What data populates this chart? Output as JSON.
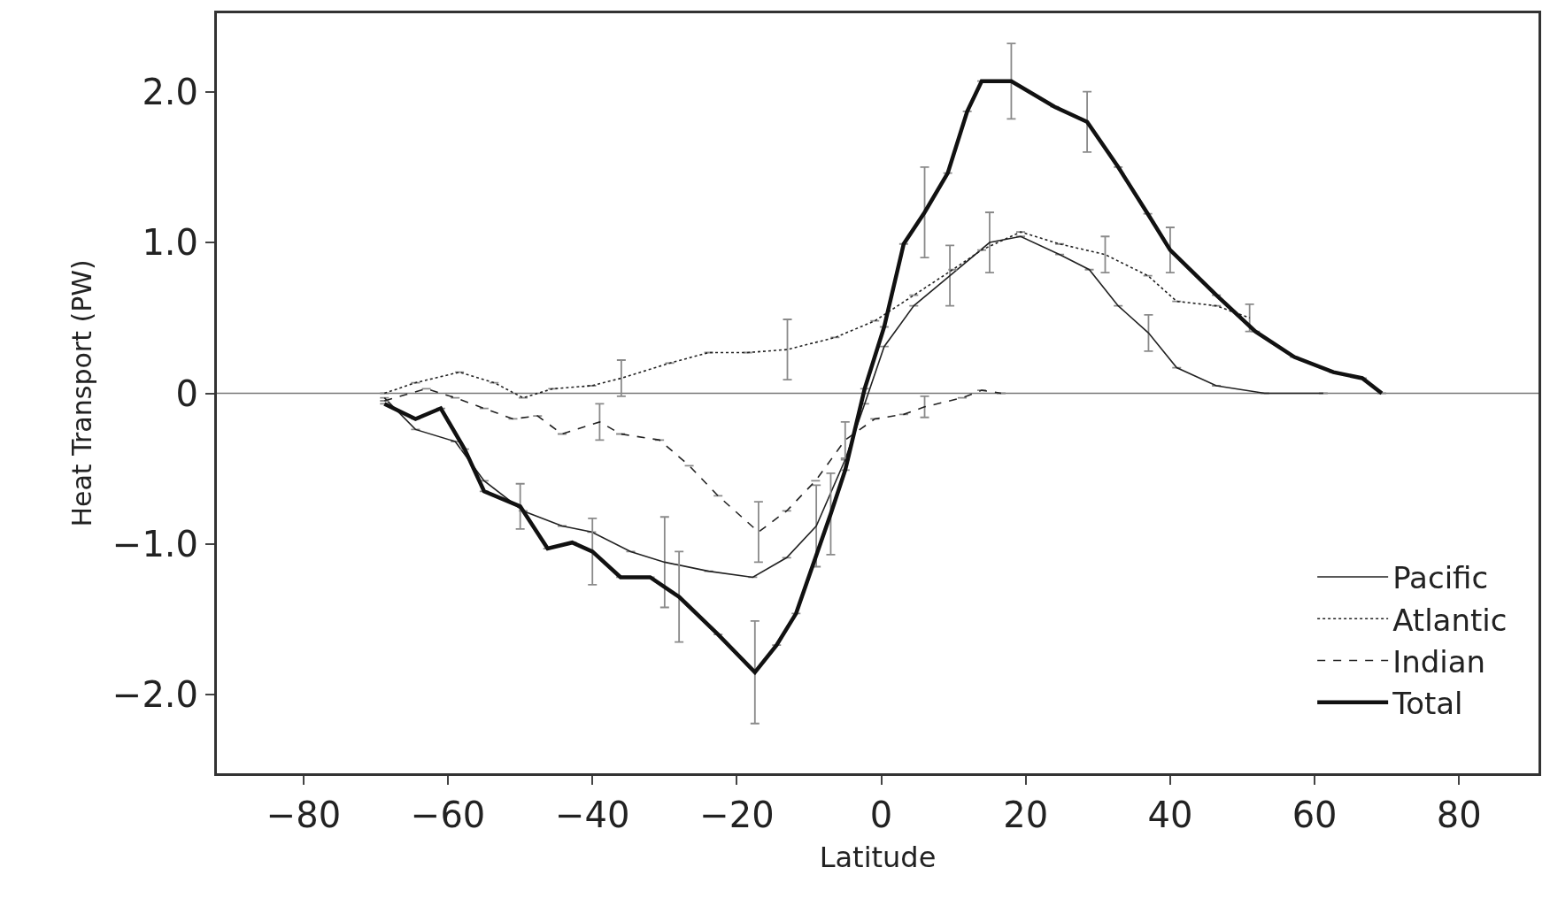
{
  "chart_data": {
    "type": "line",
    "xlabel": "Latitude",
    "ylabel": "Heat Transport (PW)",
    "xlim": [
      -92,
      91
    ],
    "ylim": [
      -2.52,
      2.52
    ],
    "xticks": [
      {
        "value": -80,
        "label": "−80"
      },
      {
        "value": -60,
        "label": "−60"
      },
      {
        "value": -40,
        "label": "−40"
      },
      {
        "value": -20,
        "label": "−20"
      },
      0,
      20,
      40,
      60,
      80
    ],
    "yticks": [
      {
        "value": -2,
        "label": "−2.0"
      },
      {
        "value": -1,
        "label": "−1.0"
      },
      0,
      {
        "value": 1,
        "label": "1.0"
      },
      {
        "value": 2,
        "label": "2.0"
      }
    ],
    "grid": false,
    "legend": "bottom right",
    "marker": "none",
    "ref_lines": [
      {
        "axis": "y",
        "value": 0,
        "color": "#777777"
      }
    ],
    "series": [
      {
        "name": "Pacific",
        "color": "#222222",
        "line_style": "solid",
        "x": [
          -68.8,
          -64.5,
          -59,
          -55,
          -49.6,
          -44.2,
          -40.1,
          -34.7,
          -30,
          -23.9,
          -17.8,
          -13.1,
          -9,
          -5,
          -2.3,
          0.4,
          4.5,
          9.5,
          15,
          19.3,
          24.7,
          28.8,
          32.8,
          37,
          40.9,
          46.4,
          53.1,
          61.2
        ],
        "values": [
          -0.03,
          -0.24,
          -0.32,
          -0.58,
          -0.78,
          -0.88,
          -0.92,
          -1.05,
          -1.12,
          -1.18,
          -1.22,
          -1.09,
          -0.88,
          -0.44,
          -0.07,
          0.31,
          0.58,
          0.78,
          1.0,
          1.04,
          0.92,
          0.82,
          0.58,
          0.4,
          0.17,
          0.05,
          0,
          0
        ],
        "errors": [
          null,
          null,
          null,
          null,
          null,
          null,
          null,
          null,
          0.3,
          null,
          null,
          null,
          0.27,
          null,
          null,
          null,
          null,
          0.2,
          0.2,
          null,
          null,
          null,
          null,
          0.12,
          null,
          null,
          null,
          null
        ]
      },
      {
        "name": "Atlantic",
        "color": "#222222",
        "line_style": "dotted",
        "x": [
          -68.8,
          -64.5,
          -58.4,
          -53.6,
          -49.6,
          -45.5,
          -40.1,
          -36,
          -29.3,
          -23.9,
          -18.5,
          -13,
          -6.4,
          -0.9,
          4.5,
          9.9,
          13.9,
          19.3,
          24.7,
          31,
          36.9,
          40.9,
          46.4,
          51
        ],
        "values": [
          0,
          0.07,
          0.14,
          0.07,
          -0.03,
          0.03,
          0.05,
          0.1,
          0.2,
          0.27,
          0.27,
          0.29,
          0.37,
          0.48,
          0.65,
          0.82,
          0.95,
          1.07,
          0.99,
          0.92,
          0.78,
          0.61,
          0.58,
          0.5
        ],
        "errors": [
          null,
          null,
          null,
          null,
          null,
          null,
          null,
          0.12,
          null,
          null,
          null,
          0.2,
          null,
          null,
          null,
          null,
          null,
          null,
          null,
          0.12,
          null,
          null,
          null,
          0.09
        ]
      },
      {
        "name": "Indian",
        "color": "#222222",
        "line_style": "dashed",
        "x": [
          -68.8,
          -63,
          -59,
          -55,
          -51,
          -47.6,
          -44.2,
          -39,
          -36.1,
          -30.7,
          -26.6,
          -22.6,
          -17,
          -13.1,
          -9.1,
          -5,
          -0.9,
          3.1,
          6,
          11.2,
          13.9,
          16.6
        ],
        "values": [
          -0.05,
          0.03,
          -0.03,
          -0.1,
          -0.17,
          -0.15,
          -0.27,
          -0.19,
          -0.27,
          -0.31,
          -0.48,
          -0.68,
          -0.92,
          -0.78,
          -0.58,
          -0.31,
          -0.17,
          -0.14,
          -0.09,
          -0.03,
          0.02,
          0
        ],
        "errors": [
          null,
          null,
          null,
          null,
          null,
          null,
          null,
          0.12,
          null,
          null,
          null,
          null,
          0.2,
          null,
          null,
          0.12,
          null,
          null,
          0.07,
          null,
          null,
          null
        ]
      },
      {
        "name": "Total",
        "color": "#111111",
        "line_style": "solid",
        "x": [
          -68.8,
          -64.5,
          -61,
          -57.7,
          -55,
          -50,
          -46.2,
          -42.8,
          -40,
          -36.1,
          -32,
          -28,
          -22.6,
          -17.5,
          -14.5,
          -11.8,
          -7,
          -5,
          -2.3,
          0.4,
          3.1,
          6,
          9.2,
          11.9,
          13.9,
          18,
          24,
          28.5,
          32.8,
          36.9,
          40,
          46.4,
          51.8,
          57.2,
          62.6,
          66.6,
          69.3
        ],
        "values": [
          -0.07,
          -0.17,
          -0.1,
          -0.37,
          -0.65,
          -0.75,
          -1.03,
          -0.99,
          -1.05,
          -1.22,
          -1.22,
          -1.35,
          -1.6,
          -1.85,
          -1.67,
          -1.46,
          -0.8,
          -0.51,
          0.03,
          0.44,
          0.99,
          1.2,
          1.46,
          1.87,
          2.07,
          2.07,
          1.9,
          1.8,
          1.5,
          1.19,
          0.95,
          0.65,
          0.41,
          0.24,
          0.14,
          0.1,
          0
        ],
        "errors": [
          null,
          null,
          null,
          null,
          null,
          0.15,
          null,
          null,
          0.22,
          null,
          null,
          0.3,
          null,
          0.34,
          null,
          null,
          0.27,
          null,
          null,
          null,
          null,
          0.3,
          null,
          null,
          null,
          0.25,
          null,
          0.2,
          null,
          null,
          0.15,
          null,
          null,
          null,
          null,
          null,
          null
        ]
      }
    ]
  }
}
